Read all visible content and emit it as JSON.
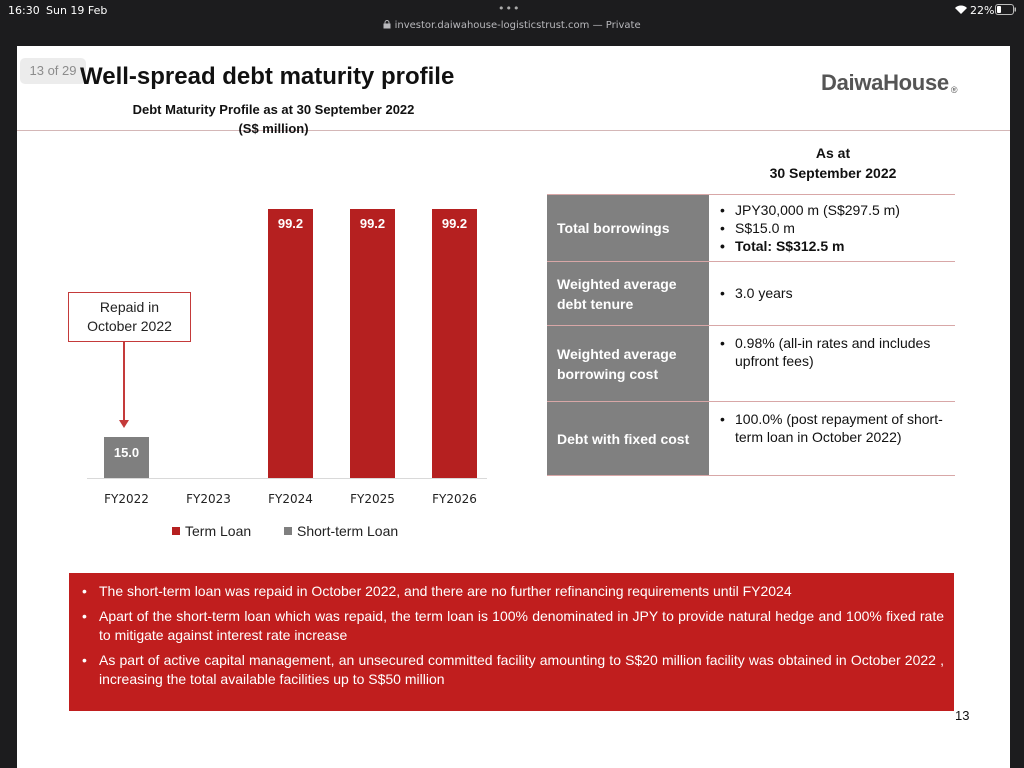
{
  "status_bar": {
    "time": "16:30",
    "date": "Sun 19 Feb",
    "wifi": "wifi-icon",
    "battery_pct": "22%"
  },
  "browser": {
    "url": "investor.daiwahouse-logisticstrust.com — Private",
    "more_icon": "more-dots-icon",
    "lock_icon": "lock-icon"
  },
  "slide": {
    "page_badge": "13 of 29",
    "title": "Well-spread debt maturity profile",
    "logo": "DaiwaHouse",
    "logo_mark": "®",
    "page_number": "13"
  },
  "chart_data": {
    "type": "bar",
    "title": "Debt Maturity Profile as at 30 September 2022",
    "subtitle": "(S$ million)",
    "categories": [
      "FY2022",
      "FY2023",
      "FY2024",
      "FY2025",
      "FY2026"
    ],
    "series": [
      {
        "name": "Term Loan",
        "color": "#b52020",
        "values": [
          0,
          0,
          99.2,
          99.2,
          99.2
        ],
        "labels": [
          "",
          "",
          "99.2",
          "99.2",
          "99.2"
        ]
      },
      {
        "name": "Short-term Loan",
        "color": "#7f7f7f",
        "values": [
          15.0,
          0,
          0,
          0,
          0
        ],
        "labels": [
          "15.0",
          "",
          "",
          "",
          ""
        ]
      }
    ],
    "ylim": [
      0,
      99.2
    ],
    "grid": false,
    "legend": "bottom",
    "annotation": {
      "text_line1": "Repaid in",
      "text_line2": "October 2022",
      "target": "FY2022"
    }
  },
  "metrics": {
    "heading_line1": "As at",
    "heading_line2": "30 September 2022",
    "rows": [
      {
        "label": "Total borrowings",
        "items": [
          "JPY30,000 m (S$297.5 m)",
          "S$15.0 m",
          "Total: S$312.5 m"
        ]
      },
      {
        "label": "Weighted average debt tenure",
        "items": [
          "3.0 years"
        ]
      },
      {
        "label": "Weighted average borrowing cost",
        "items": [
          "0.98% (all-in rates and includes upfront fees)"
        ]
      },
      {
        "label": "Debt with fixed cost",
        "items": [
          "100.0% (post repayment of short-term loan in October 2022)"
        ]
      }
    ]
  },
  "summary": [
    "The short-term loan was repaid in October 2022, and there are no further refinancing requirements until FY2024",
    "Apart of the short-term loan which was repaid, the term loan is 100% denominated in JPY to provide natural hedge and 100% fixed rate to mitigate against interest rate increase",
    "As part of active capital management, an unsecured committed facility amounting to S$20 million facility was obtained in October 2022 , increasing  the total available facilities up to S$50 million"
  ]
}
